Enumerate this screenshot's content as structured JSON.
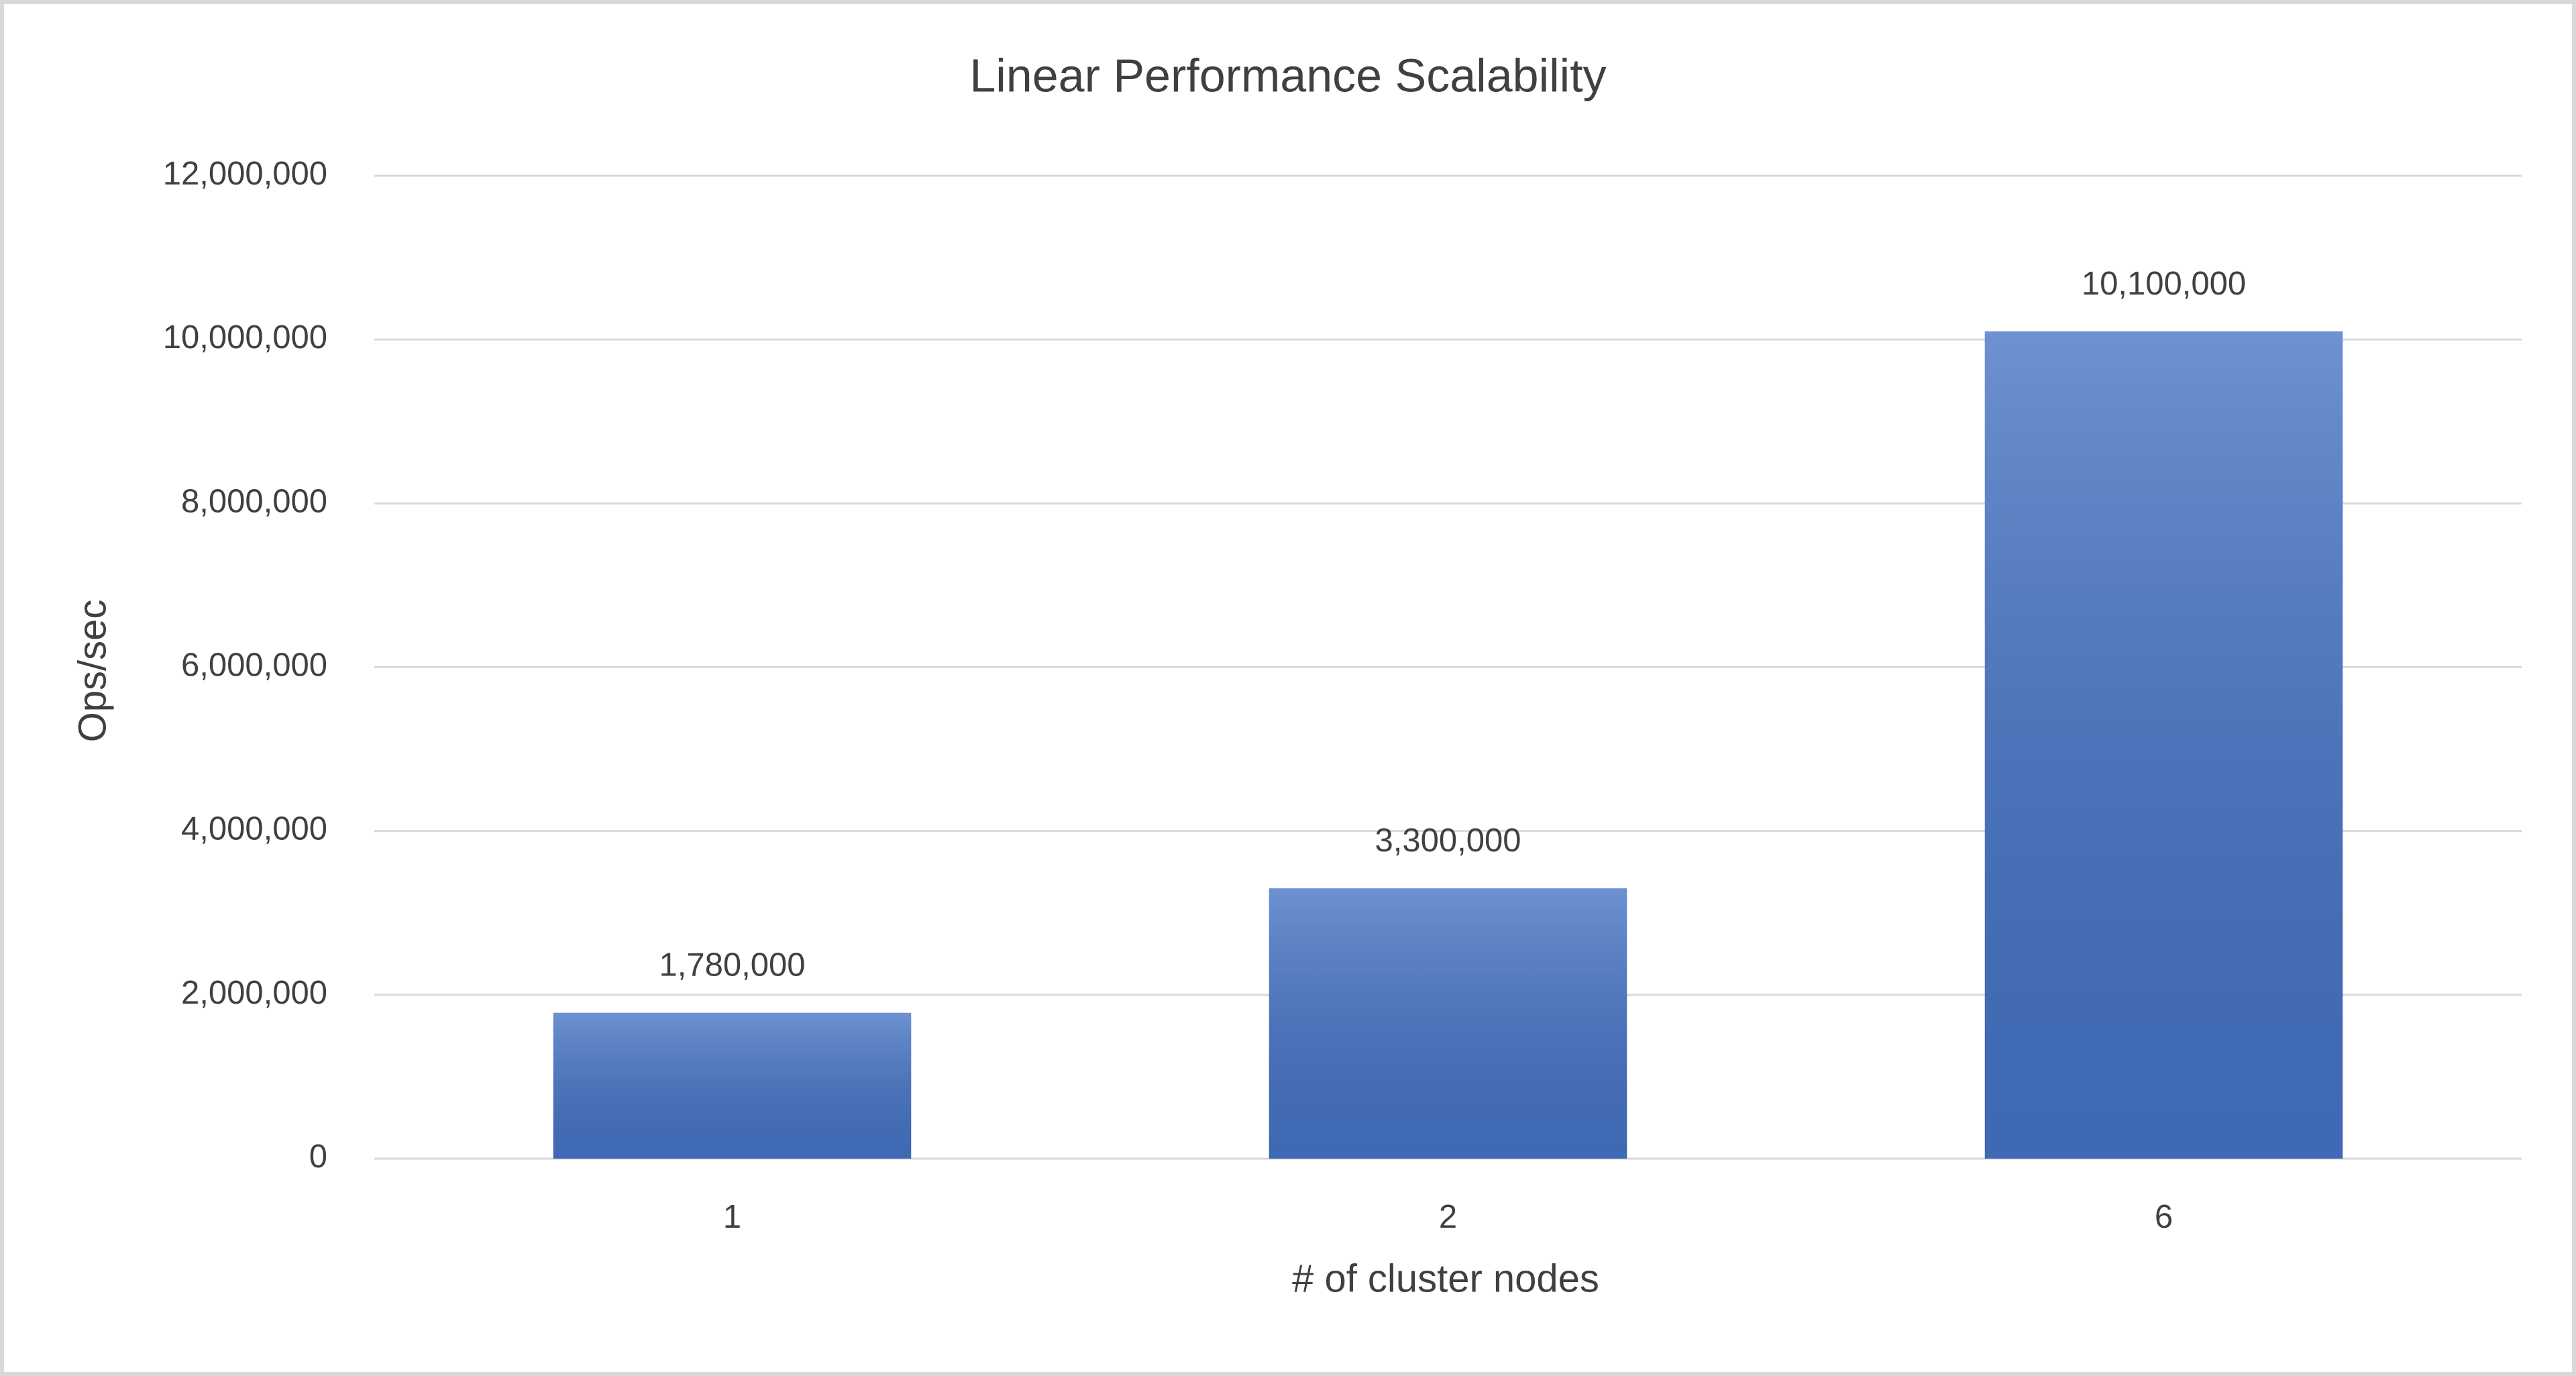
{
  "chart_data": {
    "type": "bar",
    "title": "Linear Performance Scalability",
    "x_label": "# of cluster nodes",
    "y_label": "Ops/sec",
    "categories": [
      "1",
      "2",
      "6"
    ],
    "values": [
      1780000,
      3300000,
      10100000
    ],
    "value_labels": [
      "1,780,000",
      "3,300,000",
      "10,100,000"
    ],
    "color": "#4472c4",
    "ylim": [
      0,
      12000000
    ],
    "yticks": [
      0,
      {
        "value": 2000000,
        "label": "2,000,000"
      },
      {
        "value": 4000000,
        "label": "4,000,000"
      },
      {
        "value": 6000000,
        "label": "6,000,000"
      },
      {
        "value": 8000000,
        "label": "8,000,000"
      },
      {
        "value": 10000000,
        "label": "10,000,000"
      },
      {
        "value": 12000000,
        "label": "12,000,000"
      }
    ],
    "grid": true
  }
}
